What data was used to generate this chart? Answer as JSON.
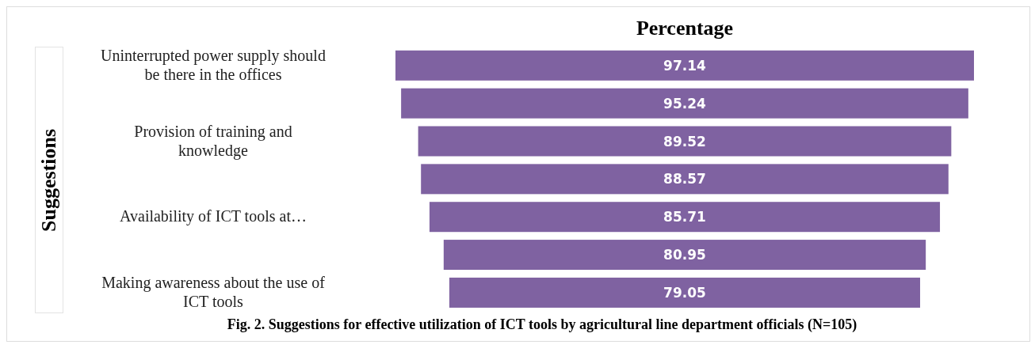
{
  "chart_data": {
    "type": "other",
    "title": "Percentage",
    "ylabel": "Suggestions",
    "categories": [
      "Uninterrupted power supply should be there in the offices",
      null,
      "Provision of training and knowledge",
      null,
      "Availability of ICT tools at…",
      null,
      "Making awareness about the use of ICT tools"
    ],
    "values": [
      97.14,
      95.24,
      89.52,
      88.57,
      85.71,
      80.95,
      79.05
    ],
    "color": "#7f62a1",
    "data_labels": true,
    "annotations": [
      "Fig. 2. Suggestions for effective utilization of ICT tools by agricultural line department officials (N=105)"
    ]
  }
}
